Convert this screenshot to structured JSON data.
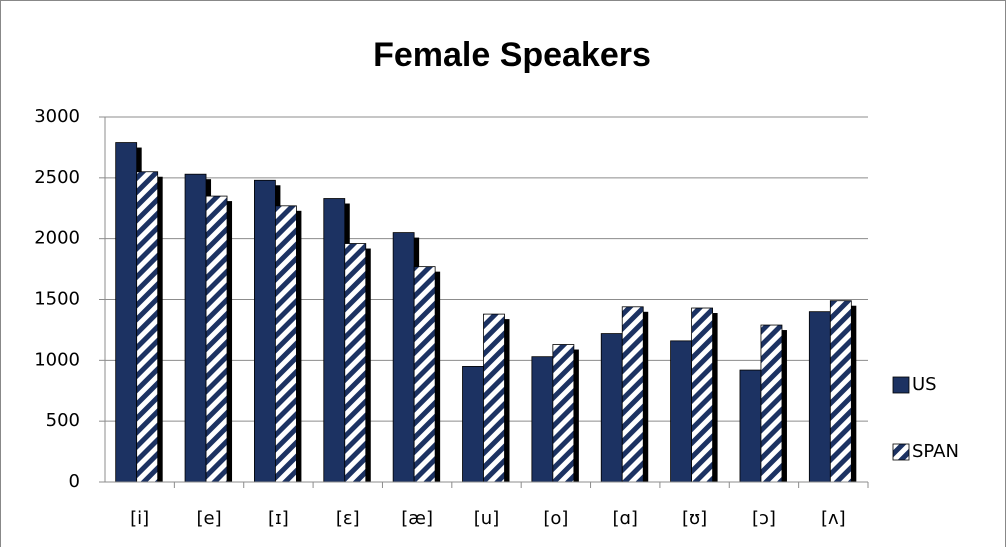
{
  "chart_data": {
    "type": "bar",
    "title": "Female Speakers",
    "categories": [
      "[i]",
      "[e]",
      "[ɪ]",
      "[ɛ]",
      "[æ]",
      "[u]",
      "[o]",
      "[ɑ]",
      "[ʊ]",
      "[ɔ]",
      "[ʌ]"
    ],
    "series": [
      {
        "name": "US",
        "color": "#1c3262",
        "values": [
          2790,
          2530,
          2480,
          2330,
          2050,
          950,
          1030,
          1220,
          1160,
          920,
          1400
        ]
      },
      {
        "name": "SPAN",
        "color": "#1c3262",
        "pattern": "diagonal-stripes",
        "values": [
          2550,
          2350,
          2270,
          1960,
          1770,
          1380,
          1130,
          1440,
          1430,
          1290,
          1490
        ]
      }
    ],
    "ylim": [
      0,
      3000
    ],
    "yticks": [
      0,
      500,
      1000,
      1500,
      2000,
      2500,
      3000
    ],
    "grid": true,
    "legend": "right"
  }
}
